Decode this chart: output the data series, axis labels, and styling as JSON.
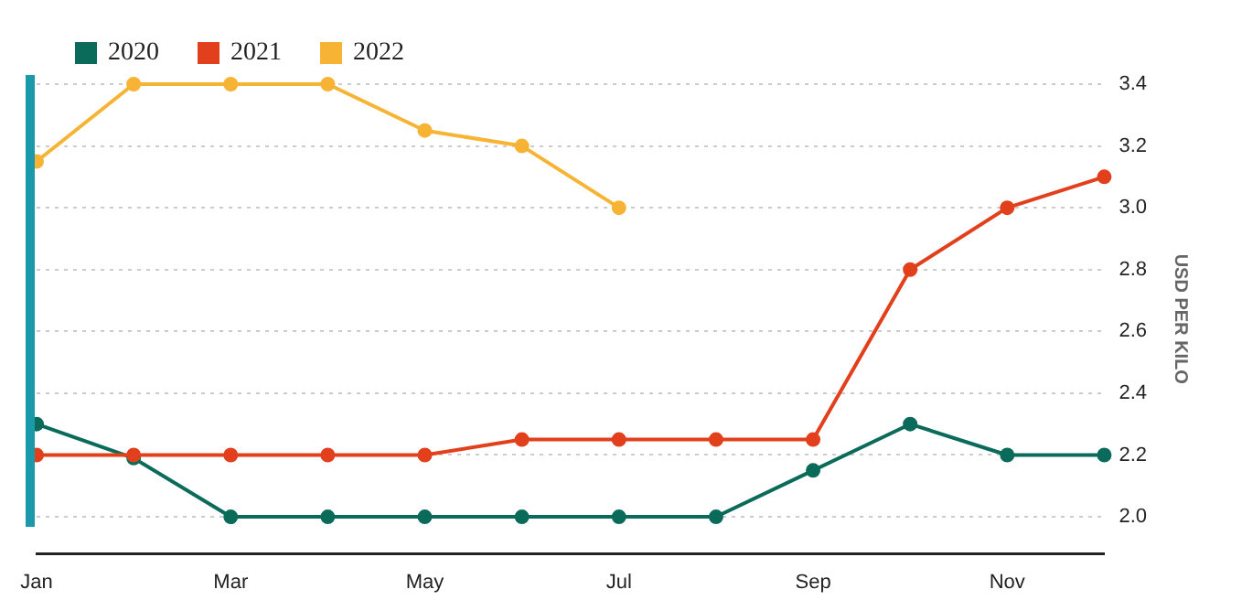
{
  "chart_data": {
    "type": "line",
    "ylabel": "USD PER KILO",
    "categories": [
      "Jan",
      null,
      "Mar",
      null,
      "May",
      null,
      "Jul",
      null,
      "Sep",
      null,
      "Nov",
      null
    ],
    "series": [
      {
        "name": "2020",
        "color": "#0b6b5a",
        "values": [
          2.3,
          2.19,
          2.0,
          2.0,
          2.0,
          2.0,
          2.0,
          2.0,
          2.15,
          2.3,
          2.2,
          2.2
        ]
      },
      {
        "name": "2021",
        "color": "#e2401c",
        "values": [
          2.2,
          2.2,
          2.2,
          2.2,
          2.2,
          2.25,
          2.25,
          2.25,
          2.25,
          2.8,
          3.0,
          3.1
        ]
      },
      {
        "name": "2022",
        "color": "#f7b334",
        "values": [
          3.15,
          3.4,
          3.4,
          3.4,
          3.25,
          3.2,
          3.0,
          null,
          null,
          null,
          null,
          null
        ]
      }
    ],
    "ylim": [
      1.88,
      3.4
    ],
    "yticks": [
      {
        "value": 2,
        "label": "2.0"
      },
      2.2,
      2.4,
      2.6,
      2.8,
      {
        "value": 3,
        "label": "3.0"
      },
      3.2,
      3.4
    ],
    "grid": "y",
    "legend": "top left",
    "marker": "circle",
    "line_style": "solid"
  }
}
